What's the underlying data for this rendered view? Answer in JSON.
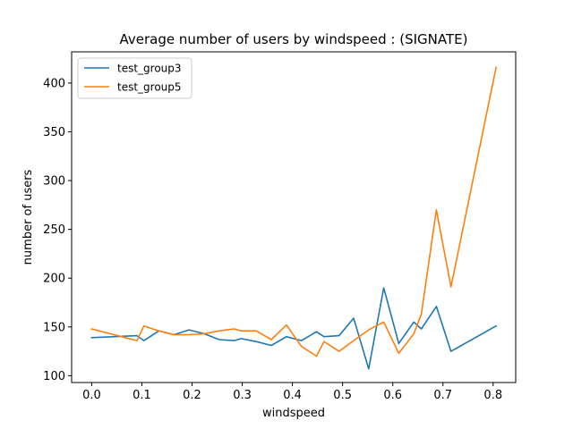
{
  "chart_data": {
    "type": "line",
    "title": "Average number of users by windspeed : (SIGNATE)",
    "xlabel": "windspeed",
    "ylabel": "number of users",
    "xlim": [
      -0.04,
      0.845
    ],
    "ylim": [
      93,
      432
    ],
    "xticks": [
      0.0,
      0.1,
      0.2,
      0.3,
      0.4,
      0.5,
      0.6,
      0.7,
      0.8
    ],
    "xtick_labels": [
      "0.0",
      "0.1",
      "0.2",
      "0.3",
      "0.4",
      "0.5",
      "0.6",
      "0.7",
      "0.8"
    ],
    "yticks": [
      100,
      150,
      200,
      250,
      300,
      350,
      400
    ],
    "ytick_labels": [
      "100",
      "150",
      "200",
      "250",
      "300",
      "350",
      "400"
    ],
    "grid": false,
    "legend_position": "top-left",
    "series": [
      {
        "name": "test_group3",
        "color": "#1f77b4",
        "x": [
          0.0,
          0.09,
          0.104,
          0.134,
          0.164,
          0.194,
          0.224,
          0.254,
          0.284,
          0.298,
          0.328,
          0.358,
          0.388,
          0.418,
          0.448,
          0.463,
          0.493,
          0.522,
          0.552,
          0.582,
          0.612,
          0.642,
          0.657,
          0.687,
          0.716,
          0.806
        ],
        "y": [
          139,
          141,
          136,
          146,
          142,
          147,
          143,
          137,
          136,
          138,
          135,
          131,
          140,
          136,
          145,
          140,
          141,
          159,
          107,
          190,
          133,
          155,
          148,
          171,
          125,
          151
        ]
      },
      {
        "name": "test_group5",
        "color": "#ff7f0e",
        "x": [
          0.0,
          0.09,
          0.104,
          0.134,
          0.164,
          0.194,
          0.224,
          0.254,
          0.284,
          0.298,
          0.328,
          0.358,
          0.388,
          0.418,
          0.448,
          0.463,
          0.493,
          0.522,
          0.552,
          0.582,
          0.612,
          0.642,
          0.657,
          0.687,
          0.716,
          0.806
        ],
        "y": [
          148,
          136,
          151,
          146,
          142,
          142,
          143,
          146,
          148,
          146,
          146,
          137,
          152,
          130,
          120,
          135,
          125,
          136,
          147,
          155,
          123,
          143,
          163,
          270,
          191,
          416
        ]
      }
    ]
  }
}
